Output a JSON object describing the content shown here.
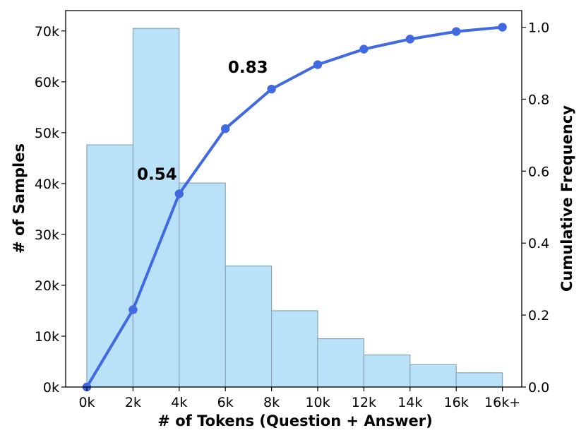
{
  "chart_data": {
    "type": "bar",
    "xlabel": "# of Tokens (Question + Answer)",
    "ylabel": "# of Samples",
    "y2label": "Cumulative Frequency",
    "x_ticks": [
      "0k",
      "2k",
      "4k",
      "6k",
      "8k",
      "10k",
      "12k",
      "14k",
      "16k",
      "16k+"
    ],
    "y_ticks": [
      "0k",
      "10k",
      "20k",
      "30k",
      "40k",
      "50k",
      "60k",
      "70k"
    ],
    "y2_ticks": [
      "0.0",
      "0.2",
      "0.4",
      "0.6",
      "0.8",
      "1.0"
    ],
    "ylim": [
      0,
      74000
    ],
    "y2lim": [
      0,
      1.0462
    ],
    "bars": {
      "bins": [
        [
          0,
          2
        ],
        [
          2,
          4
        ],
        [
          4,
          6
        ],
        [
          6,
          8
        ],
        [
          8,
          10
        ],
        [
          10,
          12
        ],
        [
          12,
          14
        ],
        [
          14,
          16
        ],
        [
          16,
          18
        ]
      ],
      "values": [
        47600,
        70500,
        40100,
        23800,
        15000,
        9500,
        6300,
        4400,
        2800
      ],
      "fill_color": "#b9e2f9",
      "edge_color": "#8aa5b5"
    },
    "line": {
      "x": [
        0,
        2,
        4,
        6,
        8,
        10,
        12,
        14,
        16,
        18
      ],
      "y": [
        0.0,
        0.215,
        0.537,
        0.718,
        0.828,
        0.896,
        0.939,
        0.967,
        0.988,
        1.0
      ],
      "color": "#4169e1"
    },
    "annotations": [
      {
        "text": "0.54",
        "x": 4,
        "y": 0.537
      },
      {
        "text": "0.83",
        "x": 8,
        "y": 0.828
      }
    ],
    "grid": false,
    "legend": "none"
  }
}
